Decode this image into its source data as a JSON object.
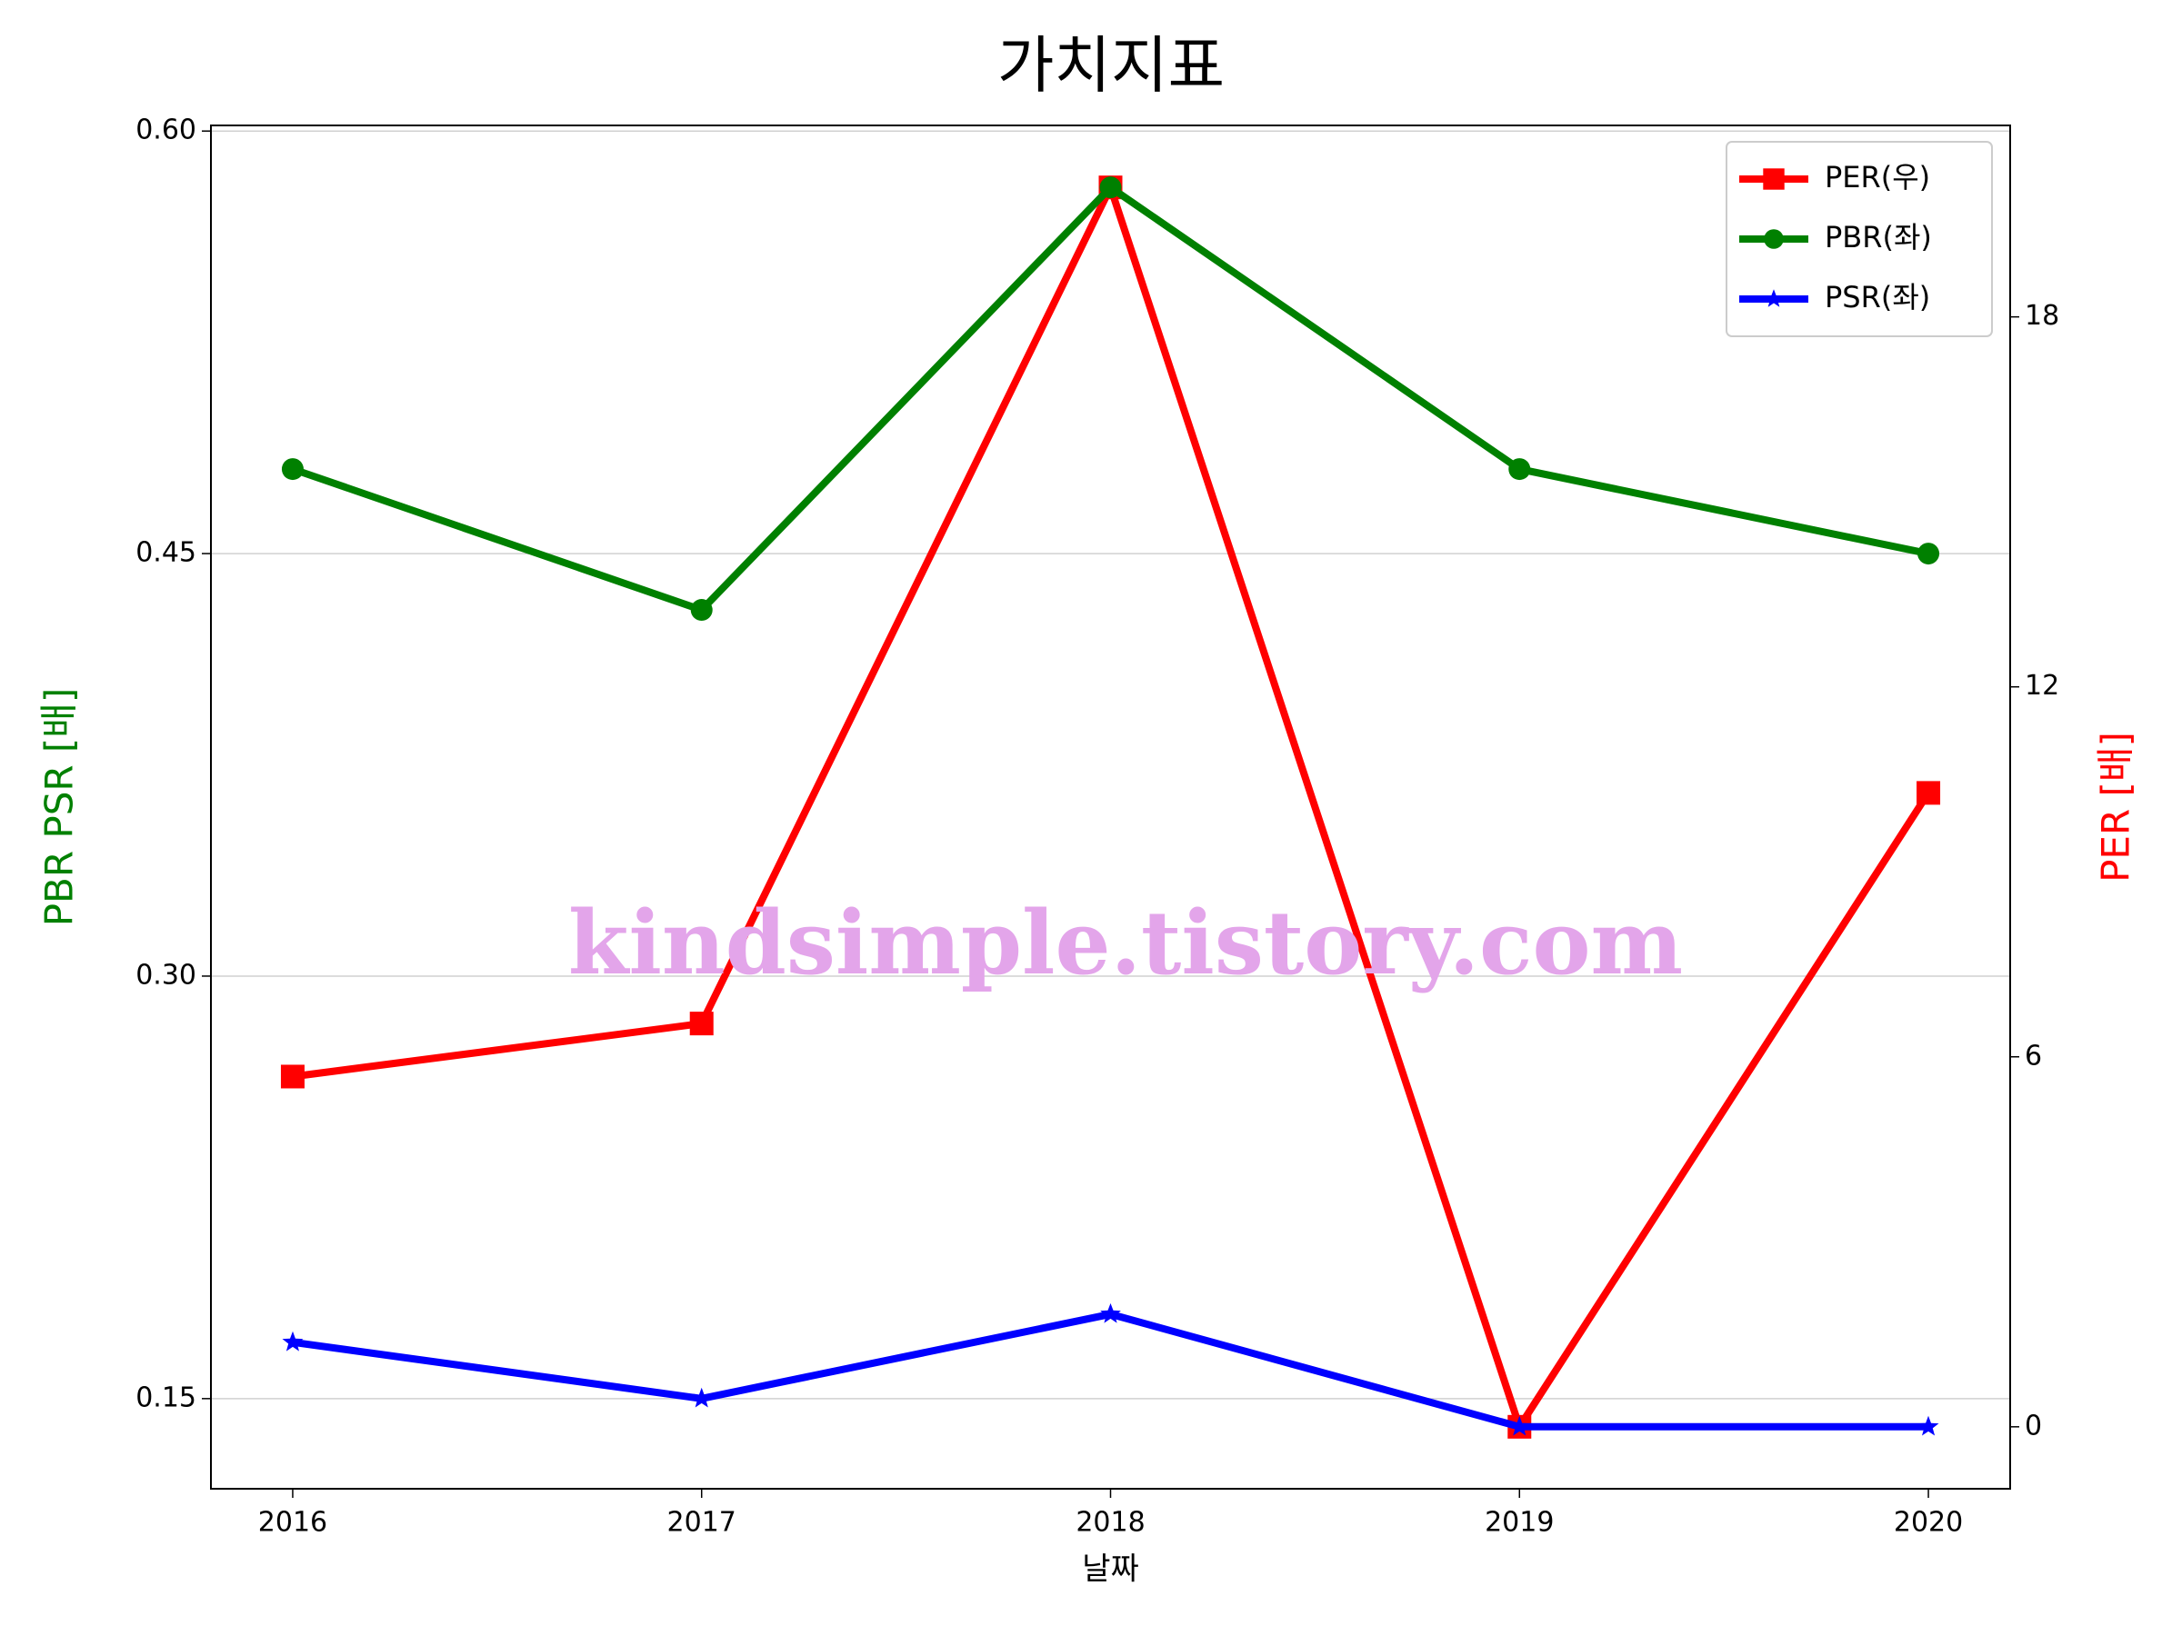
{
  "chart_data": {
    "type": "line",
    "title": "가치지표",
    "xlabel": "날짜",
    "ylabel": "PBR PSR [배]",
    "ylabel_color": "#008000",
    "y2label": "PER [배]",
    "y2label_color": "#ff0000",
    "watermark": "kindsimple.tistory.com",
    "x": [
      2016,
      2017,
      2018,
      2019,
      2020
    ],
    "xlim": [
      2015.8,
      2020.2
    ],
    "xticks": [
      2016,
      2017,
      2018,
      2019,
      2020
    ],
    "ylim": [
      0.118,
      0.602
    ],
    "yticks": [
      {
        "value": 0.15,
        "label": "0.15"
      },
      0.45,
      {
        "value": 0.3,
        "label": "0.30"
      },
      {
        "value": 0.6,
        "label": "0.60"
      }
    ],
    "y2lim": [
      -1.005,
      21.105
    ],
    "y2ticks": [
      0,
      6,
      12,
      18
    ],
    "grid": true,
    "legend": "upper right",
    "series": [
      {
        "name": "PER(우)",
        "color": "#ff0000",
        "marker": "square",
        "axis": "y2",
        "values": [
          5.68,
          6.54,
          20.1,
          0,
          10.28
        ]
      },
      {
        "name": "PBR(좌)",
        "color": "#008000",
        "marker": "circle",
        "values": [
          0.48,
          0.43,
          0.58,
          0.48,
          0.45
        ]
      },
      {
        "name": "PSR(좌)",
        "color": "#0000ff",
        "marker": "star",
        "values": [
          0.17,
          0.15,
          0.18,
          0.14,
          0.14
        ]
      }
    ]
  }
}
